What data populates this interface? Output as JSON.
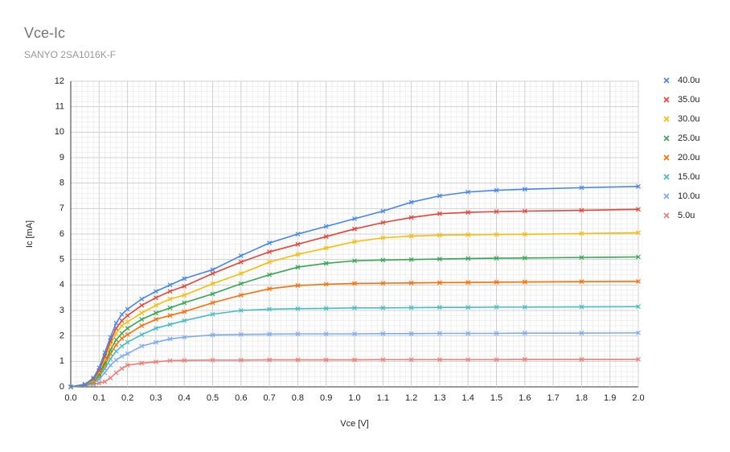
{
  "chart_data": {
    "type": "line",
    "title": "Vce-Ic",
    "subtitle": "SANYO 2SA1016K-F",
    "x_label": "Vce [V]",
    "y_label": "Ic [mA]",
    "x": [
      0,
      0.05,
      0.08,
      0.1,
      0.12,
      0.14,
      0.16,
      0.18,
      0.2,
      0.25,
      0.3,
      0.35,
      0.4,
      0.5,
      0.6,
      0.7,
      0.8,
      0.9,
      1.0,
      1.1,
      1.2,
      1.3,
      1.4,
      1.5,
      1.6,
      1.8,
      2.0
    ],
    "series": [
      {
        "name": "40.0u",
        "color": "#4285f4",
        "values": [
          0,
          0.1,
          0.35,
          0.75,
          1.35,
          1.95,
          2.5,
          2.85,
          3.05,
          3.45,
          3.75,
          4.0,
          4.25,
          4.6,
          5.15,
          5.65,
          6.0,
          6.3,
          6.6,
          6.9,
          7.25,
          7.5,
          7.65,
          7.72,
          7.76,
          7.82,
          7.87
        ]
      },
      {
        "name": "35.0u",
        "color": "#ea4335",
        "values": [
          0,
          0.1,
          0.3,
          0.65,
          1.2,
          1.8,
          2.3,
          2.6,
          2.8,
          3.2,
          3.5,
          3.75,
          3.95,
          4.45,
          4.9,
          5.3,
          5.6,
          5.9,
          6.2,
          6.45,
          6.65,
          6.8,
          6.85,
          6.88,
          6.9,
          6.93,
          6.97
        ]
      },
      {
        "name": "30.0u",
        "color": "#fbbc04",
        "values": [
          0,
          0.1,
          0.25,
          0.6,
          1.1,
          1.65,
          2.1,
          2.4,
          2.55,
          2.9,
          3.2,
          3.45,
          3.6,
          4.05,
          4.45,
          4.9,
          5.2,
          5.45,
          5.7,
          5.85,
          5.92,
          5.96,
          5.97,
          5.98,
          5.99,
          6.02,
          6.05
        ]
      },
      {
        "name": "25.0u",
        "color": "#34a853",
        "values": [
          0,
          0.08,
          0.22,
          0.5,
          0.95,
          1.45,
          1.85,
          2.1,
          2.3,
          2.65,
          2.9,
          3.1,
          3.3,
          3.65,
          4.05,
          4.4,
          4.7,
          4.85,
          4.95,
          4.98,
          5.0,
          5.02,
          5.04,
          5.05,
          5.06,
          5.08,
          5.1
        ]
      },
      {
        "name": "20.0u",
        "color": "#ff6d01",
        "values": [
          0,
          0.07,
          0.2,
          0.45,
          0.85,
          1.3,
          1.65,
          1.9,
          2.05,
          2.4,
          2.65,
          2.8,
          2.95,
          3.3,
          3.6,
          3.85,
          3.98,
          4.03,
          4.06,
          4.07,
          4.08,
          4.09,
          4.1,
          4.11,
          4.12,
          4.13,
          4.14
        ]
      },
      {
        "name": "15.0u",
        "color": "#46bdc6",
        "values": [
          0,
          0.06,
          0.17,
          0.38,
          0.72,
          1.1,
          1.4,
          1.6,
          1.75,
          2.05,
          2.3,
          2.45,
          2.6,
          2.85,
          3.0,
          3.05,
          3.07,
          3.08,
          3.1,
          3.1,
          3.11,
          3.12,
          3.12,
          3.13,
          3.13,
          3.14,
          3.15
        ]
      },
      {
        "name": "10.0u",
        "color": "#7baaf7",
        "values": [
          0,
          0.05,
          0.14,
          0.3,
          0.55,
          0.85,
          1.05,
          1.2,
          1.3,
          1.6,
          1.75,
          1.88,
          1.95,
          2.04,
          2.06,
          2.07,
          2.08,
          2.08,
          2.08,
          2.09,
          2.09,
          2.1,
          2.1,
          2.1,
          2.11,
          2.11,
          2.12
        ]
      },
      {
        "name": "5.0u",
        "color": "#f07b72",
        "values": [
          0,
          0.04,
          0.1,
          0.15,
          0.2,
          0.35,
          0.55,
          0.72,
          0.85,
          0.93,
          0.98,
          1.03,
          1.04,
          1.05,
          1.05,
          1.06,
          1.06,
          1.06,
          1.06,
          1.07,
          1.07,
          1.07,
          1.07,
          1.07,
          1.08,
          1.08,
          1.08
        ]
      }
    ],
    "xlim": [
      0,
      2
    ],
    "xticks": [
      {
        "value": 0,
        "label": "0.0"
      },
      0.1,
      0.2,
      0.3,
      0.4,
      0.5,
      0.6,
      0.7,
      0.8,
      0.9,
      {
        "value": 1,
        "label": "1.0"
      },
      1.1,
      1.2,
      1.3,
      1.4,
      1.5,
      1.6,
      1.7,
      1.8,
      1.9,
      {
        "value": 2,
        "label": "2.0"
      }
    ],
    "ylim": [
      0,
      12
    ],
    "yticks": [
      0,
      1,
      2,
      3,
      4,
      5,
      6,
      7,
      8,
      9,
      10,
      11,
      12
    ],
    "grid": true,
    "minor_grid": true,
    "legend": "right"
  }
}
